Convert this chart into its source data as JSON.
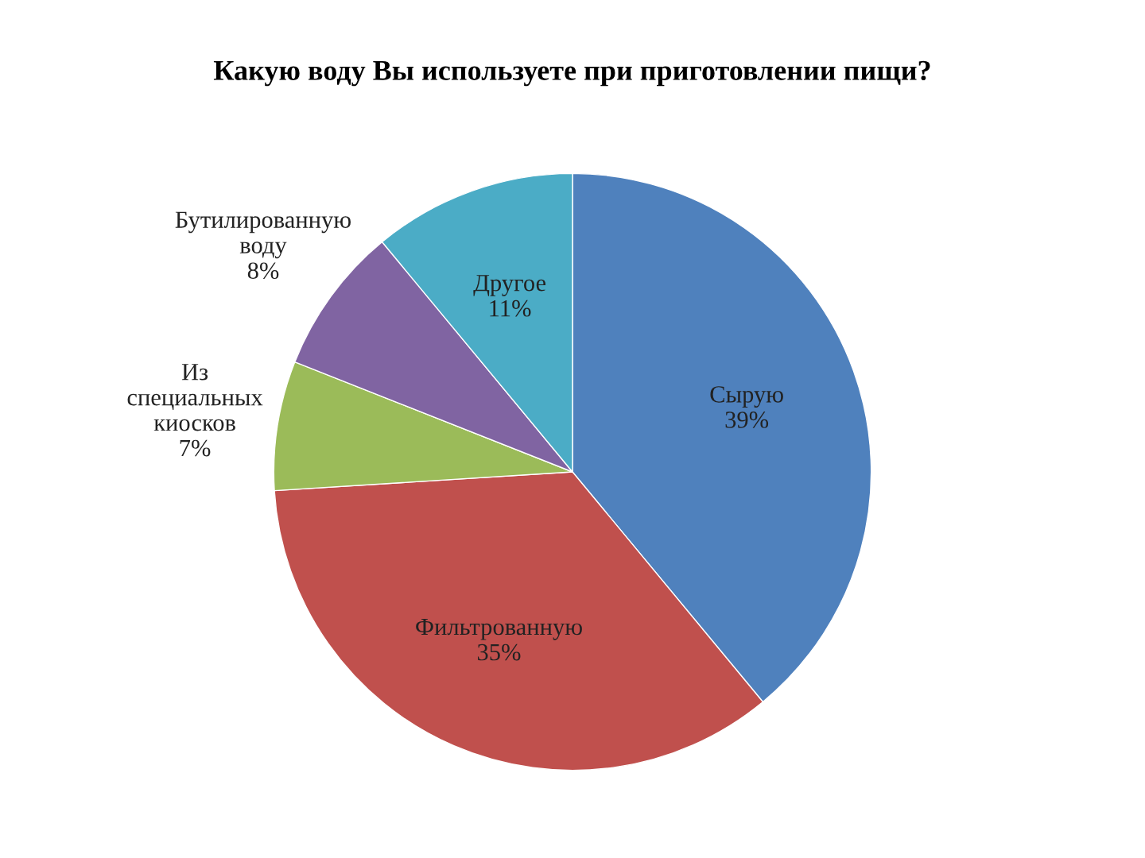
{
  "chart_data": {
    "type": "pie",
    "title": "Какую воду Вы используете при приготовлении пищи?",
    "categories": [
      "Сырую",
      "Фильтрованную",
      "Из специальных киосков",
      "Бутилированную воду",
      "Другое"
    ],
    "values": [
      39,
      35,
      7,
      8,
      11
    ],
    "colors": [
      "#4f81bd",
      "#c0504d",
      "#9bbb59",
      "#8064a2",
      "#4bacc6"
    ],
    "value_labels": [
      "39%",
      "35%",
      "7%",
      "8%",
      "11%"
    ],
    "legend": false
  }
}
